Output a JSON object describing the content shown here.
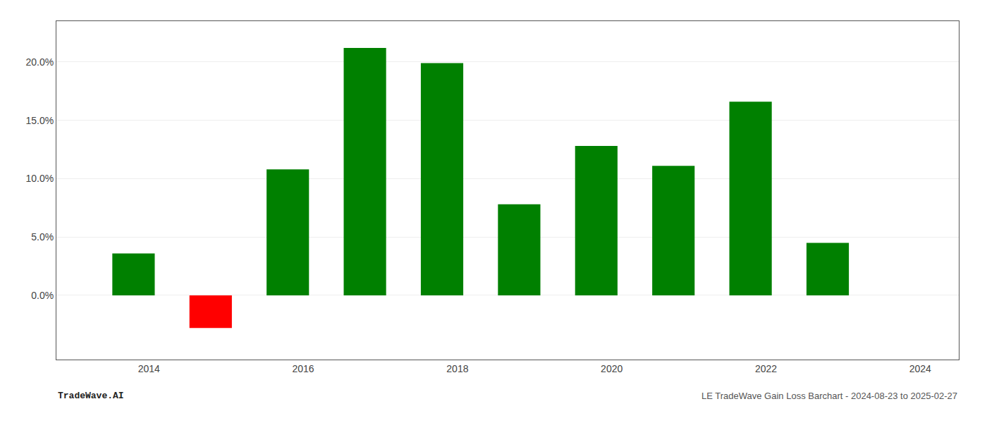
{
  "chart_data": {
    "type": "bar",
    "x": [
      2013.8,
      2014.8,
      2015.8,
      2016.8,
      2017.8,
      2018.8,
      2019.8,
      2020.8,
      2021.8,
      2022.8
    ],
    "values": [
      0.036,
      -0.028,
      0.108,
      0.212,
      0.199,
      0.078,
      0.128,
      0.111,
      0.166,
      0.045
    ],
    "colors": [
      "#008000",
      "#ff0000",
      "#008000",
      "#008000",
      "#008000",
      "#008000",
      "#008000",
      "#008000",
      "#008000",
      "#008000"
    ],
    "xlim": [
      2012.8,
      2024.5
    ],
    "ylim": [
      -0.055,
      0.235
    ],
    "xticks": [
      2014,
      2016,
      2018,
      2020,
      2022,
      2024
    ],
    "yticks": [
      {
        "value": 0.0,
        "label": "0.0%"
      },
      {
        "value": 0.05,
        "label": "5.0%"
      },
      {
        "value": 0.1,
        "label": "10.0%"
      },
      {
        "value": 0.15,
        "label": "15.0%"
      },
      {
        "value": 0.2,
        "label": "20.0%"
      }
    ],
    "grid": true,
    "annotations": [
      "TradeWave.AI",
      "LE TradeWave Gain Loss Barchart - 2024-08-23 to 2025-02-27"
    ]
  }
}
